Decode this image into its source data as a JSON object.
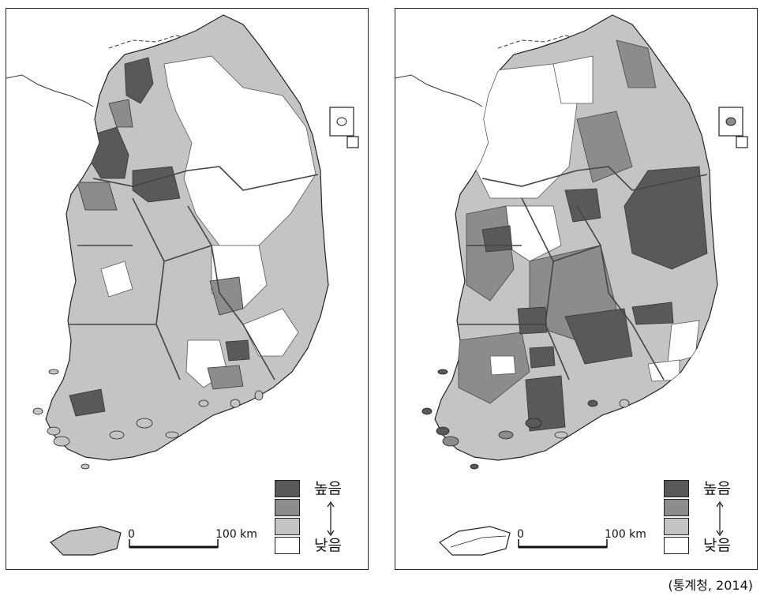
{
  "legend": {
    "high_label": "높음",
    "low_label": "낮음",
    "classes": [
      {
        "rank": "높음",
        "color": "#595959"
      },
      {
        "rank": "",
        "color": "#8c8c8c"
      },
      {
        "rank": "",
        "color": "#c4c4c4"
      },
      {
        "rank": "낮음",
        "color": "#ffffff"
      }
    ]
  },
  "scale_bar": {
    "start": "0",
    "end": "100 km"
  },
  "source": "(통계청, 2014)",
  "colors": {
    "dark": "#595959",
    "mid": "#8c8c8c",
    "light": "#c4c4c4",
    "none": "#ffffff",
    "outline": "#333333"
  }
}
